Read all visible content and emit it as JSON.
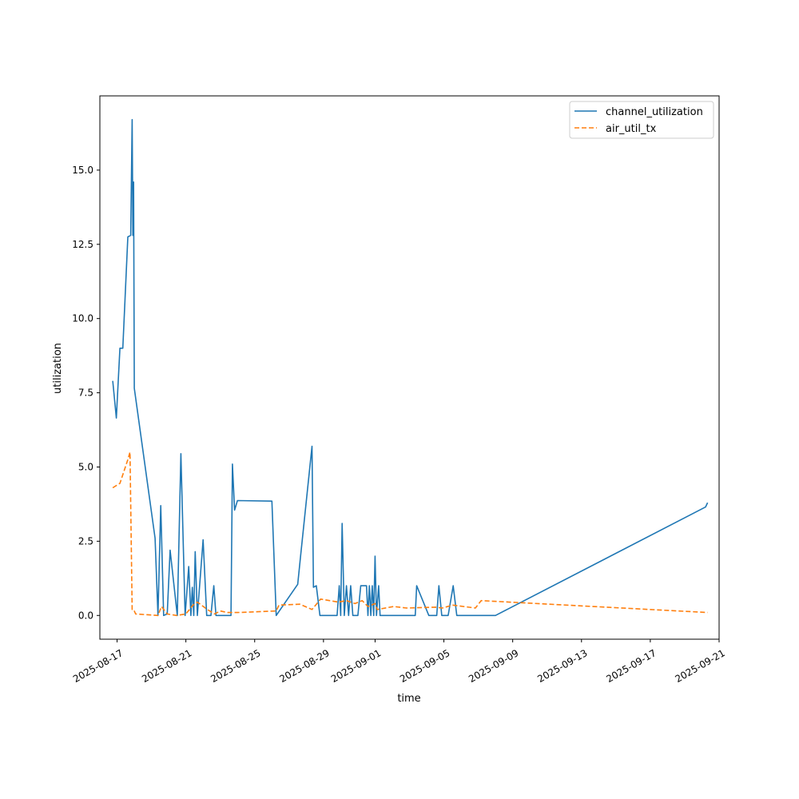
{
  "chart_data": {
    "type": "line",
    "xlabel": "time",
    "ylabel": "utilization",
    "x_axis_type": "date",
    "xlim": [
      "2025-08-16T00:00",
      "2025-09-21T00:00"
    ],
    "ylim": [
      -0.8,
      17.5
    ],
    "grid": false,
    "legend_position": "top-right",
    "x_ticks": [
      "2025-08-17",
      "2025-08-21",
      "2025-08-25",
      "2025-08-29",
      "2025-09-01",
      "2025-09-05",
      "2025-09-09",
      "2025-09-13",
      "2025-09-17",
      "2025-09-21"
    ],
    "y_ticks": [
      "0.0",
      "2.5",
      "5.0",
      "7.5",
      "10.0",
      "12.5",
      "15.0"
    ],
    "colors": {
      "channel_utilization": "#1f77b4",
      "air_util_tx": "#ff7f0e"
    },
    "series": [
      {
        "name": "channel_utilization",
        "style": "solid",
        "points": [
          [
            "2025-08-16T18:00",
            7.9
          ],
          [
            "2025-08-16T23:00",
            6.65
          ],
          [
            "2025-08-17T04:00",
            9.0
          ],
          [
            "2025-08-17T08:00",
            9.0
          ],
          [
            "2025-08-17T15:00",
            12.75
          ],
          [
            "2025-08-17T19:00",
            12.8
          ],
          [
            "2025-08-17T21:00",
            16.7
          ],
          [
            "2025-08-17T22:00",
            12.8
          ],
          [
            "2025-08-17T23:00",
            14.6
          ],
          [
            "2025-08-18T00:00",
            7.65
          ],
          [
            "2025-08-19T05:00",
            2.6
          ],
          [
            "2025-08-19T09:00",
            0.0
          ],
          [
            "2025-08-19T13:00",
            3.7
          ],
          [
            "2025-08-19T17:00",
            0.0
          ],
          [
            "2025-08-19T22:00",
            0.05
          ],
          [
            "2025-08-20T02:00",
            2.2
          ],
          [
            "2025-08-20T12:00",
            0.0
          ],
          [
            "2025-08-20T17:00",
            5.45
          ],
          [
            "2025-08-20T23:00",
            0.0
          ],
          [
            "2025-08-21T04:00",
            1.65
          ],
          [
            "2025-08-21T07:00",
            0.0
          ],
          [
            "2025-08-21T09:00",
            0.95
          ],
          [
            "2025-08-21T11:00",
            0.0
          ],
          [
            "2025-08-21T13:00",
            2.15
          ],
          [
            "2025-08-21T16:00",
            0.0
          ],
          [
            "2025-08-22T00:00",
            2.55
          ],
          [
            "2025-08-22T05:00",
            0.0
          ],
          [
            "2025-08-22T11:00",
            0.0
          ],
          [
            "2025-08-22T15:00",
            1.0
          ],
          [
            "2025-08-22T18:00",
            0.0
          ],
          [
            "2025-08-23T15:00",
            0.0
          ],
          [
            "2025-08-23T17:00",
            5.1
          ],
          [
            "2025-08-23T20:00",
            3.55
          ],
          [
            "2025-08-24T00:00",
            3.87
          ],
          [
            "2025-08-26T00:00",
            3.85
          ],
          [
            "2025-08-26T06:00",
            0.0
          ],
          [
            "2025-08-27T12:00",
            1.05
          ],
          [
            "2025-08-27T16:00",
            2.0
          ],
          [
            "2025-08-28T08:00",
            5.7
          ],
          [
            "2025-08-28T10:00",
            0.95
          ],
          [
            "2025-08-28T14:00",
            1.0
          ],
          [
            "2025-08-28T19:00",
            0.0
          ],
          [
            "2025-08-29T19:00",
            0.0
          ],
          [
            "2025-08-29T22:00",
            1.0
          ],
          [
            "2025-08-30T00:00",
            0.0
          ],
          [
            "2025-08-30T02:00",
            3.1
          ],
          [
            "2025-08-30T05:00",
            0.0
          ],
          [
            "2025-08-30T08:00",
            1.0
          ],
          [
            "2025-08-30T11:00",
            0.0
          ],
          [
            "2025-08-30T14:00",
            1.0
          ],
          [
            "2025-08-30T17:00",
            0.0
          ],
          [
            "2025-08-31T00:00",
            0.0
          ],
          [
            "2025-08-31T04:00",
            1.0
          ],
          [
            "2025-08-31T12:00",
            1.0
          ],
          [
            "2025-08-31T14:00",
            0.0
          ],
          [
            "2025-08-31T16:00",
            1.0
          ],
          [
            "2025-08-31T18:00",
            0.0
          ],
          [
            "2025-08-31T20:00",
            1.0
          ],
          [
            "2025-08-31T22:00",
            0.0
          ],
          [
            "2025-09-01T00:00",
            2.0
          ],
          [
            "2025-09-01T02:00",
            0.0
          ],
          [
            "2025-09-01T05:00",
            1.0
          ],
          [
            "2025-09-01T07:00",
            0.0
          ],
          [
            "2025-09-03T08:00",
            0.0
          ],
          [
            "2025-09-03T10:00",
            1.0
          ],
          [
            "2025-09-04T03:00",
            0.0
          ],
          [
            "2025-09-04T14:00",
            0.0
          ],
          [
            "2025-09-04T17:00",
            1.0
          ],
          [
            "2025-09-04T21:00",
            0.0
          ],
          [
            "2025-09-05T06:00",
            0.0
          ],
          [
            "2025-09-05T13:00",
            1.0
          ],
          [
            "2025-09-05T18:00",
            0.0
          ],
          [
            "2025-09-06T12:00",
            0.0
          ],
          [
            "2025-09-07T05:00",
            0.0
          ],
          [
            "2025-09-08T00:00",
            0.0
          ],
          [
            "2025-09-20T05:00",
            3.65
          ],
          [
            "2025-09-20T08:00",
            3.8
          ]
        ]
      },
      {
        "name": "air_util_tx",
        "style": "dashed",
        "points": [
          [
            "2025-08-16T18:00",
            4.3
          ],
          [
            "2025-08-17T04:00",
            4.45
          ],
          [
            "2025-08-17T15:00",
            5.25
          ],
          [
            "2025-08-17T18:00",
            5.5
          ],
          [
            "2025-08-17T21:00",
            0.2
          ],
          [
            "2025-08-17T23:00",
            0.2
          ],
          [
            "2025-08-18T02:00",
            0.05
          ],
          [
            "2025-08-19T09:00",
            0.0
          ],
          [
            "2025-08-19T14:00",
            0.3
          ],
          [
            "2025-08-19T22:00",
            0.05
          ],
          [
            "2025-08-20T11:00",
            0.0
          ],
          [
            "2025-08-21T00:00",
            0.05
          ],
          [
            "2025-08-21T10:00",
            0.35
          ],
          [
            "2025-08-21T16:00",
            0.45
          ],
          [
            "2025-08-22T06:00",
            0.2
          ],
          [
            "2025-08-22T16:00",
            0.05
          ],
          [
            "2025-08-23T00:00",
            0.15
          ],
          [
            "2025-08-23T10:00",
            0.1
          ],
          [
            "2025-08-24T00:00",
            0.1
          ],
          [
            "2025-08-26T06:00",
            0.15
          ],
          [
            "2025-08-26T10:00",
            0.35
          ],
          [
            "2025-08-27T15:00",
            0.38
          ],
          [
            "2025-08-28T08:00",
            0.2
          ],
          [
            "2025-08-28T20:00",
            0.55
          ],
          [
            "2025-08-29T21:00",
            0.45
          ],
          [
            "2025-08-30T08:00",
            0.5
          ],
          [
            "2025-08-30T20:00",
            0.4
          ],
          [
            "2025-08-31T06:00",
            0.5
          ],
          [
            "2025-08-31T14:00",
            0.3
          ],
          [
            "2025-09-01T00:00",
            0.4
          ],
          [
            "2025-09-01T03:00",
            0.2
          ],
          [
            "2025-09-02T02:00",
            0.3
          ],
          [
            "2025-09-02T20:00",
            0.25
          ],
          [
            "2025-09-04T12:00",
            0.28
          ],
          [
            "2025-09-04T22:00",
            0.25
          ],
          [
            "2025-09-05T12:00",
            0.35
          ],
          [
            "2025-09-06T20:00",
            0.25
          ],
          [
            "2025-09-07T04:00",
            0.5
          ],
          [
            "2025-09-20T08:00",
            0.1
          ]
        ]
      }
    ]
  }
}
